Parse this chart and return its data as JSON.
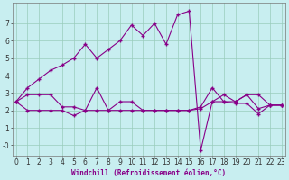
{
  "xlabel": "Windchill (Refroidissement éolien,°C)",
  "x": [
    0,
    1,
    2,
    3,
    4,
    5,
    6,
    7,
    8,
    9,
    10,
    11,
    12,
    13,
    14,
    15,
    16,
    17,
    18,
    19,
    20,
    21,
    22,
    23
  ],
  "line_top": [
    2.5,
    3.3,
    3.8,
    4.3,
    4.6,
    5.0,
    5.8,
    5.0,
    5.5,
    6.0,
    6.9,
    6.3,
    7.0,
    5.8,
    7.5,
    7.7,
    -0.3,
    2.5,
    2.9,
    2.5,
    2.9,
    2.1,
    2.3,
    2.3
  ],
  "line_mid": [
    2.5,
    2.9,
    2.9,
    2.9,
    2.2,
    2.2,
    2.0,
    3.3,
    2.0,
    2.5,
    2.5,
    2.0,
    2.0,
    2.0,
    2.0,
    2.0,
    2.2,
    3.3,
    2.5,
    2.5,
    2.9,
    2.9,
    2.3,
    2.3
  ],
  "line_bot": [
    2.5,
    2.0,
    2.0,
    2.0,
    2.0,
    1.7,
    2.0,
    2.0,
    2.0,
    2.0,
    2.0,
    2.0,
    2.0,
    2.0,
    2.0,
    2.0,
    2.1,
    2.5,
    2.5,
    2.4,
    2.4,
    1.8,
    2.3,
    2.3
  ],
  "line_color": "#880088",
  "bg_color": "#c8eef0",
  "grid_color": "#99ccbb",
  "ylim": [
    -0.6,
    8.2
  ],
  "xlim": [
    -0.3,
    23.3
  ],
  "yticks": [
    0,
    1,
    2,
    3,
    4,
    5,
    6,
    7
  ],
  "ytick_labels": [
    "-0",
    "1",
    "2",
    "3",
    "4",
    "5",
    "6",
    "7"
  ],
  "marker": "+"
}
